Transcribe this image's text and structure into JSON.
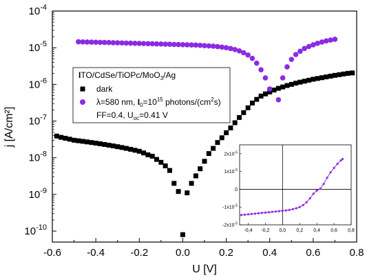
{
  "chart_data": {
    "type": "scatter",
    "title": "",
    "xlabel": "U [V]",
    "ylabel": "j [A/cm²]",
    "xlim": [
      -0.6,
      0.8
    ],
    "ylim_log10": [
      -10.3,
      -4
    ],
    "yscale": "log",
    "x_ticks": [
      "-0.6",
      "-0.4",
      "-0.2",
      "0.0",
      "0.2",
      "0.4",
      "0.6",
      "0.8"
    ],
    "y_tick_exponents": [
      "-4",
      "-5",
      "-6",
      "-7",
      "-8",
      "-9",
      "-10"
    ],
    "legend": {
      "placement": "left",
      "header": "ITO/CdSe/TiOPc/MoO3/Ag",
      "header_parts": [
        "I",
        "TO/CdSe/TiOPc/MoO",
        "3",
        "/Ag"
      ],
      "entries": [
        {
          "series": "dark",
          "label": "dark"
        },
        {
          "series": "illuminated",
          "parts": [
            "λ=580 nm, ",
            "I",
            "0",
            "=10",
            "15",
            " photons/(cm",
            "2",
            "s)"
          ]
        }
      ],
      "note_parts": [
        "FF=0.4, U",
        "oc",
        "=0.41 V"
      ]
    },
    "series": [
      {
        "name": "dark",
        "color": "#000000",
        "marker": "square",
        "points": [
          [
            -0.58,
            3.9e-08
          ],
          [
            -0.56,
            3.6e-08
          ],
          [
            -0.54,
            3.4e-08
          ],
          [
            -0.52,
            3.2e-08
          ],
          [
            -0.5,
            3e-08
          ],
          [
            -0.48,
            2.9e-08
          ],
          [
            -0.46,
            2.8e-08
          ],
          [
            -0.44,
            2.7e-08
          ],
          [
            -0.42,
            2.6e-08
          ],
          [
            -0.4,
            2.5e-08
          ],
          [
            -0.38,
            2.4e-08
          ],
          [
            -0.36,
            2.3e-08
          ],
          [
            -0.34,
            2.2e-08
          ],
          [
            -0.32,
            2.1e-08
          ],
          [
            -0.3,
            2e-08
          ],
          [
            -0.28,
            1.9e-08
          ],
          [
            -0.26,
            1.8e-08
          ],
          [
            -0.24,
            1.7e-08
          ],
          [
            -0.22,
            1.6e-08
          ],
          [
            -0.2,
            1.5e-08
          ],
          [
            -0.18,
            1.35e-08
          ],
          [
            -0.16,
            1.2e-08
          ],
          [
            -0.14,
            1.1e-08
          ],
          [
            -0.12,
            9e-09
          ],
          [
            -0.1,
            7.5e-09
          ],
          [
            -0.08,
            6e-09
          ],
          [
            -0.06,
            4.5e-09
          ],
          [
            -0.04,
            2e-09
          ],
          [
            -0.02,
            1.2e-09
          ],
          [
            0.0,
            8e-11
          ],
          [
            0.02,
            1.1e-09
          ],
          [
            0.04,
            2e-09
          ],
          [
            0.06,
            3.2e-09
          ],
          [
            0.08,
            5e-09
          ],
          [
            0.1,
            8e-09
          ],
          [
            0.12,
            1.3e-08
          ],
          [
            0.14,
            1.8e-08
          ],
          [
            0.16,
            2.6e-08
          ],
          [
            0.18,
            3.5e-08
          ],
          [
            0.2,
            4.8e-08
          ],
          [
            0.22,
            6.5e-08
          ],
          [
            0.24,
            9e-08
          ],
          [
            0.26,
            1.25e-07
          ],
          [
            0.28,
            1.7e-07
          ],
          [
            0.3,
            2.3e-07
          ],
          [
            0.32,
            3.1e-07
          ],
          [
            0.34,
            3.9e-07
          ],
          [
            0.36,
            4.8e-07
          ],
          [
            0.38,
            5.5e-07
          ],
          [
            0.4,
            6.2e-07
          ],
          [
            0.42,
            7e-07
          ],
          [
            0.44,
            7.8e-07
          ],
          [
            0.46,
            8.5e-07
          ],
          [
            0.48,
            9.3e-07
          ],
          [
            0.5,
            1e-06
          ],
          [
            0.52,
            1.08e-06
          ],
          [
            0.54,
            1.15e-06
          ],
          [
            0.56,
            1.22e-06
          ],
          [
            0.58,
            1.3e-06
          ],
          [
            0.6,
            1.38e-06
          ],
          [
            0.62,
            1.45e-06
          ],
          [
            0.64,
            1.52e-06
          ],
          [
            0.66,
            1.6e-06
          ],
          [
            0.68,
            1.68e-06
          ],
          [
            0.7,
            1.76e-06
          ],
          [
            0.72,
            1.84e-06
          ],
          [
            0.74,
            1.92e-06
          ],
          [
            0.76,
            2e-06
          ],
          [
            0.78,
            2.05e-06
          ]
        ]
      },
      {
        "name": "illuminated",
        "color": "#8b2be2",
        "marker": "circle",
        "points": [
          [
            -0.48,
            1.45e-05
          ],
          [
            -0.46,
            1.44e-05
          ],
          [
            -0.44,
            1.43e-05
          ],
          [
            -0.42,
            1.42e-05
          ],
          [
            -0.4,
            1.41e-05
          ],
          [
            -0.38,
            1.4e-05
          ],
          [
            -0.36,
            1.39e-05
          ],
          [
            -0.34,
            1.38e-05
          ],
          [
            -0.32,
            1.37e-05
          ],
          [
            -0.3,
            1.36e-05
          ],
          [
            -0.28,
            1.35e-05
          ],
          [
            -0.26,
            1.34e-05
          ],
          [
            -0.24,
            1.33e-05
          ],
          [
            -0.22,
            1.32e-05
          ],
          [
            -0.2,
            1.31e-05
          ],
          [
            -0.18,
            1.3e-05
          ],
          [
            -0.16,
            1.29e-05
          ],
          [
            -0.14,
            1.28e-05
          ],
          [
            -0.12,
            1.27e-05
          ],
          [
            -0.1,
            1.26e-05
          ],
          [
            -0.08,
            1.25e-05
          ],
          [
            -0.06,
            1.24e-05
          ],
          [
            -0.04,
            1.23e-05
          ],
          [
            -0.02,
            1.22e-05
          ],
          [
            0.0,
            1.21e-05
          ],
          [
            0.02,
            1.2e-05
          ],
          [
            0.04,
            1.19e-05
          ],
          [
            0.06,
            1.18e-05
          ],
          [
            0.08,
            1.16e-05
          ],
          [
            0.1,
            1.14e-05
          ],
          [
            0.12,
            1.12e-05
          ],
          [
            0.14,
            1.1e-05
          ],
          [
            0.16,
            1.07e-05
          ],
          [
            0.18,
            1.04e-05
          ],
          [
            0.2,
            1e-05
          ],
          [
            0.22,
            9.5e-06
          ],
          [
            0.24,
            8.9e-06
          ],
          [
            0.26,
            8.2e-06
          ],
          [
            0.28,
            7.3e-06
          ],
          [
            0.3,
            6.3e-06
          ],
          [
            0.32,
            5.1e-06
          ],
          [
            0.34,
            3.8e-06
          ],
          [
            0.36,
            2.5e-06
          ],
          [
            0.38,
            1.5e-06
          ],
          [
            0.4,
            7.5e-07
          ],
          [
            0.44,
            3.8e-07
          ],
          [
            0.46,
            1.5e-06
          ],
          [
            0.48,
            3e-06
          ],
          [
            0.5,
            4.8e-06
          ],
          [
            0.52,
            6.5e-06
          ],
          [
            0.54,
            8e-06
          ],
          [
            0.56,
            9.5e-06
          ],
          [
            0.58,
            1.08e-05
          ],
          [
            0.6,
            1.2e-05
          ],
          [
            0.62,
            1.32e-05
          ],
          [
            0.64,
            1.43e-05
          ],
          [
            0.66,
            1.53e-05
          ],
          [
            0.68,
            1.62e-05
          ],
          [
            0.7,
            1.7e-05
          ]
        ]
      }
    ],
    "inset": {
      "type": "line",
      "xlim": [
        -0.5,
        0.8
      ],
      "ylim": [
        -2e-05,
        2.5e-05
      ],
      "x_ticks": [
        "-0,4",
        "-0,2",
        "0,0",
        "0,2",
        "0,4",
        "0,6",
        "0,8"
      ],
      "y_ticks": [
        {
          "mant": "2x10",
          "exp": "-5",
          "value": 2e-05
        },
        {
          "mant": "1x10",
          "exp": "-5",
          "value": 1e-05
        },
        {
          "mant": "0",
          "exp": "",
          "value": 0
        },
        {
          "mant": "-1x10",
          "exp": "-5",
          "value": -1e-05
        },
        {
          "mant": "-2x10",
          "exp": "-5",
          "value": -2e-05
        }
      ],
      "series": {
        "color": "#8b2be2",
        "points": [
          [
            -0.48,
            -1.45e-05
          ],
          [
            -0.44,
            -1.43e-05
          ],
          [
            -0.4,
            -1.41e-05
          ],
          [
            -0.36,
            -1.39e-05
          ],
          [
            -0.32,
            -1.37e-05
          ],
          [
            -0.28,
            -1.35e-05
          ],
          [
            -0.24,
            -1.33e-05
          ],
          [
            -0.2,
            -1.31e-05
          ],
          [
            -0.16,
            -1.29e-05
          ],
          [
            -0.12,
            -1.27e-05
          ],
          [
            -0.08,
            -1.25e-05
          ],
          [
            -0.04,
            -1.23e-05
          ],
          [
            0.0,
            -1.21e-05
          ],
          [
            0.04,
            -1.19e-05
          ],
          [
            0.08,
            -1.16e-05
          ],
          [
            0.12,
            -1.12e-05
          ],
          [
            0.16,
            -1.07e-05
          ],
          [
            0.2,
            -1e-05
          ],
          [
            0.24,
            -8.9e-06
          ],
          [
            0.28,
            -7.3e-06
          ],
          [
            0.32,
            -5.1e-06
          ],
          [
            0.36,
            -2.5e-06
          ],
          [
            0.4,
            -7.5e-07
          ],
          [
            0.44,
            3.8e-07
          ],
          [
            0.48,
            3e-06
          ],
          [
            0.52,
            6.5e-06
          ],
          [
            0.56,
            9.5e-06
          ],
          [
            0.6,
            1.2e-05
          ],
          [
            0.64,
            1.43e-05
          ],
          [
            0.68,
            1.62e-05
          ],
          [
            0.7,
            1.7e-05
          ]
        ]
      }
    }
  }
}
